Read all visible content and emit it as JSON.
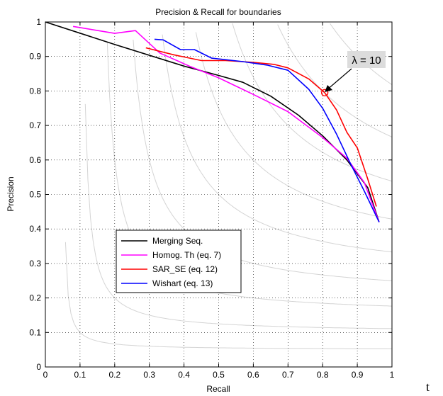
{
  "chart_data": {
    "type": "line",
    "title": "Precision & Recall for boundaries",
    "xlabel": "Recall",
    "ylabel": "Precision",
    "xlim": [
      0,
      1
    ],
    "ylim": [
      0,
      1
    ],
    "xticks": [
      0,
      0.1,
      0.2,
      0.3,
      0.4,
      0.5,
      0.6,
      0.7,
      0.8,
      0.9,
      1
    ],
    "yticks": [
      0,
      0.1,
      0.2,
      0.3,
      0.4,
      0.5,
      0.6,
      0.7,
      0.8,
      0.9,
      1
    ],
    "xtick_labels": [
      "0",
      "0.1",
      "0.2",
      "0.3",
      "0.4",
      "0.5",
      "0.6",
      "0.7",
      "0.8",
      "0.9",
      "1"
    ],
    "ytick_labels": [
      "0",
      "0.1",
      "0.2",
      "0.3",
      "0.4",
      "0.5",
      "0.6",
      "0.7",
      "0.8",
      "0.9",
      "1"
    ],
    "grid": true,
    "legend_position": "lower-left",
    "series": [
      {
        "name": "Merging Seq.",
        "color": "#000000",
        "x": [
          0.0,
          0.2,
          0.4,
          0.5,
          0.57,
          0.65,
          0.73,
          0.8,
          0.87,
          0.93,
          0.963
        ],
        "y": [
          1.0,
          0.935,
          0.872,
          0.845,
          0.825,
          0.785,
          0.73,
          0.67,
          0.6,
          0.52,
          0.42
        ]
      },
      {
        "name": "Homog. Th (eq. 7)",
        "color": "#ff00ff",
        "x": [
          0.08,
          0.2,
          0.26,
          0.33,
          0.42,
          0.5,
          0.6,
          0.7,
          0.8,
          0.87,
          0.92,
          0.963
        ],
        "y": [
          0.987,
          0.967,
          0.975,
          0.91,
          0.87,
          0.838,
          0.79,
          0.74,
          0.665,
          0.605,
          0.535,
          0.42
        ]
      },
      {
        "name": "SAR_SE (eq. 12)",
        "color": "#ff0000",
        "x": [
          0.29,
          0.37,
          0.45,
          0.52,
          0.6,
          0.66,
          0.7,
          0.76,
          0.806,
          0.84,
          0.87,
          0.9,
          0.93,
          0.955
        ],
        "y": [
          0.925,
          0.905,
          0.888,
          0.888,
          0.883,
          0.877,
          0.867,
          0.835,
          0.795,
          0.745,
          0.68,
          0.635,
          0.545,
          0.465
        ]
      },
      {
        "name": "Wishart (eq. 13)",
        "color": "#0000ff",
        "x": [
          0.315,
          0.34,
          0.39,
          0.43,
          0.48,
          0.57,
          0.64,
          0.7,
          0.76,
          0.8,
          0.84,
          0.88,
          0.92,
          0.963
        ],
        "y": [
          0.95,
          0.948,
          0.92,
          0.92,
          0.895,
          0.885,
          0.875,
          0.86,
          0.805,
          0.75,
          0.675,
          0.59,
          0.51,
          0.42
        ]
      }
    ],
    "f_measure_contours": [
      0.1,
      0.2,
      0.3,
      0.4,
      0.5,
      0.6,
      0.7,
      0.8,
      0.9
    ],
    "marker": {
      "x": 0.806,
      "y": 0.795,
      "series": "SAR_SE (eq. 12)"
    },
    "annotation": {
      "text": "λ = 10",
      "x": 0.806,
      "y": 0.795
    }
  },
  "stray_text": "t"
}
